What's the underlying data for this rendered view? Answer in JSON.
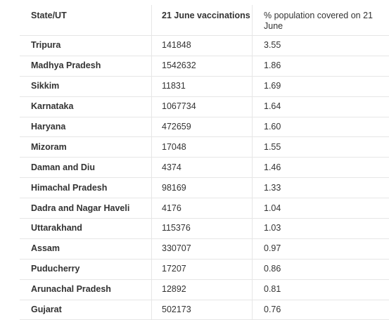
{
  "table": {
    "headers": {
      "state": "State/UT",
      "vaccinations": "21 June vaccinations",
      "coverage": "% population covered on 21 June"
    },
    "rows": [
      {
        "state": "Tripura",
        "vaccinations": "141848",
        "coverage": "3.55"
      },
      {
        "state": "Madhya Pradesh",
        "vaccinations": "1542632",
        "coverage": "1.86"
      },
      {
        "state": "Sikkim",
        "vaccinations": "11831",
        "coverage": "1.69"
      },
      {
        "state": "Karnataka",
        "vaccinations": "1067734",
        "coverage": "1.64"
      },
      {
        "state": "Haryana",
        "vaccinations": "472659",
        "coverage": "1.60"
      },
      {
        "state": "Mizoram",
        "vaccinations": "17048",
        "coverage": "1.55"
      },
      {
        "state": "Daman and Diu",
        "vaccinations": "4374",
        "coverage": "1.46"
      },
      {
        "state": "Himachal Pradesh",
        "vaccinations": "98169",
        "coverage": "1.33"
      },
      {
        "state": "Dadra and Nagar Haveli",
        "vaccinations": "4176",
        "coverage": "1.04"
      },
      {
        "state": "Uttarakhand",
        "vaccinations": "115376",
        "coverage": "1.03"
      },
      {
        "state": "Assam",
        "vaccinations": "330707",
        "coverage": "0.97"
      },
      {
        "state": "Puducherry",
        "vaccinations": "17207",
        "coverage": "0.86"
      },
      {
        "state": "Arunachal Pradesh",
        "vaccinations": "12892",
        "coverage": "0.81"
      },
      {
        "state": "Gujarat",
        "vaccinations": "502173",
        "coverage": "0.76"
      }
    ]
  }
}
